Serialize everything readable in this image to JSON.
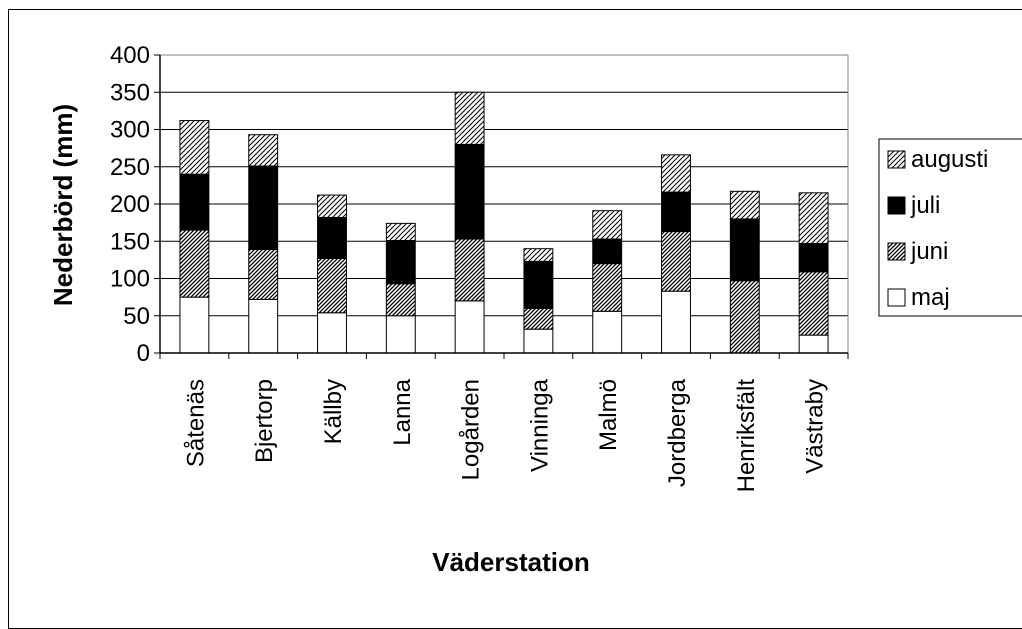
{
  "chart_data": {
    "type": "bar",
    "stacked": true,
    "categories": [
      "Såtenäs",
      "Bjertorp",
      "Källby",
      "Lanna",
      "Logården",
      "Vinninga",
      "Malmö",
      "Jordberga",
      "Henriksfält",
      "Västraby"
    ],
    "series": [
      {
        "name": "maj",
        "values": [
          75,
          72,
          54,
          50,
          70,
          32,
          56,
          83,
          0,
          24
        ],
        "fill": "white"
      },
      {
        "name": "juni",
        "values": [
          90,
          67,
          73,
          43,
          83,
          28,
          64,
          80,
          97,
          85
        ],
        "fill": "dense-hatch"
      },
      {
        "name": "juli",
        "values": [
          75,
          112,
          55,
          58,
          127,
          63,
          33,
          53,
          83,
          38
        ],
        "fill": "black"
      },
      {
        "name": "augusti",
        "values": [
          72,
          42,
          30,
          23,
          70,
          17,
          38,
          50,
          37,
          68
        ],
        "fill": "light-hatch"
      }
    ],
    "xlabel": "Väderstation",
    "ylabel": "Nederbörd (mm)",
    "ylim": [
      0,
      400
    ],
    "yticks": [
      0,
      50,
      100,
      150,
      200,
      250,
      300,
      350,
      400
    ],
    "grid": true,
    "legend_position": "right",
    "legend_order": [
      "augusti",
      "juli",
      "juni",
      "maj"
    ],
    "colors": {
      "background": "#ffffff",
      "plot_background": "#ffffff",
      "grid": "#000000",
      "solid": "#000000"
    }
  }
}
